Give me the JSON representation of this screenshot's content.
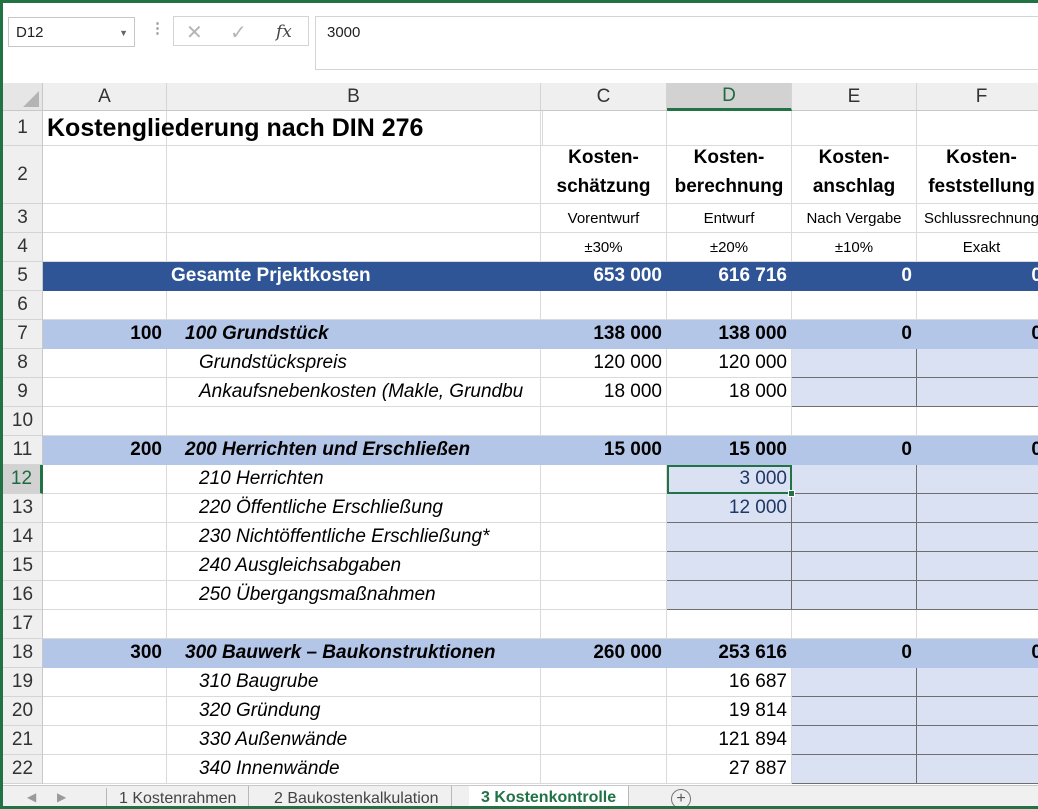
{
  "formula_bar": {
    "name_box": "D12",
    "formula_value": "3000",
    "cancel_glyph": "✕",
    "enter_glyph": "✓",
    "fx_glyph": "fx"
  },
  "columns": [
    "A",
    "B",
    "C",
    "D",
    "E",
    "F"
  ],
  "selected_column": "D",
  "rows": [
    "1",
    "2",
    "3",
    "4",
    "5",
    "6",
    "7",
    "8",
    "9",
    "10",
    "11",
    "12",
    "13",
    "14",
    "15",
    "16",
    "17",
    "18",
    "19",
    "20",
    "21",
    "22"
  ],
  "selected_row": "12",
  "title": "Kostengliederung nach DIN 276",
  "headers": {
    "c": {
      "line1": "Kosten-",
      "line2": "schätzung",
      "phase": "Vorentwurf",
      "accuracy": "±30%"
    },
    "d": {
      "line1": "Kosten-",
      "line2": "berechnung",
      "phase": "Entwurf",
      "accuracy": "±20%"
    },
    "e": {
      "line1": "Kosten-",
      "line2": "anschlag",
      "phase": "Nach Vergabe",
      "accuracy": "±10%"
    },
    "f": {
      "line1": "Kosten-",
      "line2": "feststellung",
      "phase": "Schlussrechnung",
      "accuracy": "Exakt"
    }
  },
  "total_row": {
    "label": "Gesamte Prjektkosten",
    "c": "653 000",
    "d": "616 716",
    "e": "0",
    "f": "0"
  },
  "groups": {
    "g100": {
      "code": "100",
      "label": "100 Grundstück",
      "c": "138 000",
      "d": "138 000",
      "e": "0",
      "f": "0"
    },
    "g200": {
      "code": "200",
      "label": "200 Herrichten und Erschließen",
      "c": "15 000",
      "d": "15 000",
      "e": "0",
      "f": "0"
    },
    "g300": {
      "code": "300",
      "label": "300 Bauwerk – Baukonstruktionen",
      "c": "260 000",
      "d": "253 616",
      "e": "0",
      "f": "0"
    }
  },
  "items": {
    "r8": {
      "label": "Grundstückspreis",
      "c": "120 000",
      "d": "120 000"
    },
    "r9": {
      "label": "Ankaufsnebenkosten (Makle, Grundbu",
      "c": "18 000",
      "d": "18 000"
    },
    "r12": {
      "label": "210 Herrichten",
      "d": "3 000"
    },
    "r13": {
      "label": "220 Öffentliche Erschließung",
      "d": "12 000"
    },
    "r14": {
      "label": "230 Nichtöffentliche Erschließung*"
    },
    "r15": {
      "label": "240 Ausgleichsabgaben"
    },
    "r16": {
      "label": "250 Übergangsmaßnahmen"
    },
    "r19": {
      "label": "310 Baugrube",
      "d": "16 687"
    },
    "r20": {
      "label": "320 Gründung",
      "d": "19 814"
    },
    "r21": {
      "label": "330 Außenwände",
      "d": "121 894"
    },
    "r22": {
      "label": "340 Innenwände",
      "d": "27 887"
    }
  },
  "sheet_tabs": [
    "1 Kostenrahmen",
    "2 Baukostenkalkulation",
    "3 Kostenkontrolle"
  ],
  "active_tab": "3 Kostenkontrolle",
  "add_sheet_glyph": "+",
  "colors": {
    "accent": "#217346",
    "dark_band": "#2f5597",
    "light_band": "#b4c6e7",
    "input_fill": "#dae1f3"
  }
}
